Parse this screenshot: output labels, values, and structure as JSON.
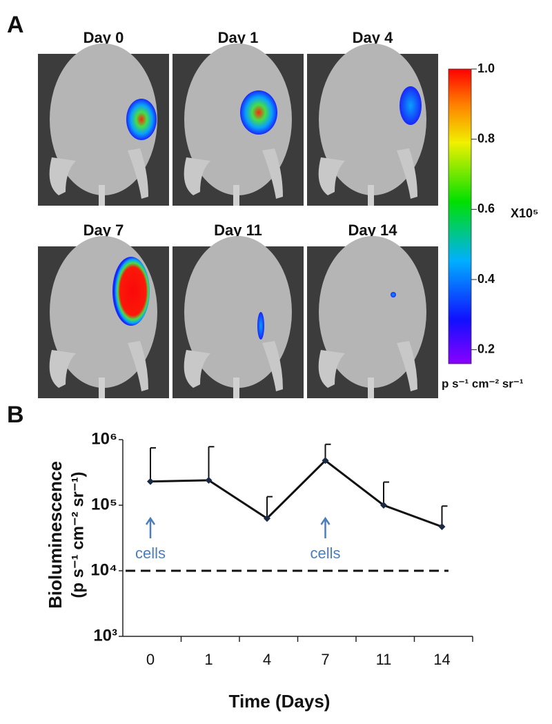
{
  "panel_a": {
    "label": "A",
    "images": [
      "Day 0",
      "Day 1",
      "Day  4",
      "Day 7",
      "Day 11",
      "Day 14"
    ],
    "colorbar": {
      "clim": [
        0.16,
        1.0
      ],
      "ticks": [
        0.2,
        0.4,
        0.6,
        0.8,
        {
          "value": 1,
          "label": "1.0"
        }
      ],
      "multiplier": "X10⁵",
      "unit": "p s⁻¹ cm⁻² sr⁻¹"
    }
  },
  "chart_data": {
    "type": "line",
    "panel_label": "B",
    "y_label": "Bioluminescence",
    "y_label_unit": "(p s⁻¹ cm⁻² sr⁻¹)",
    "x_label": "Time (Days)",
    "categories": [
      "0",
      "1",
      "4",
      "7",
      "11",
      "14"
    ],
    "series": [
      {
        "color": "#111111",
        "values": [
          230000,
          240000,
          63000,
          480000,
          100000,
          47000
        ],
        "errors": [
          520000,
          540000,
          72000,
          370000,
          125000,
          50000
        ]
      }
    ],
    "ylim": [
      1000,
      1000000
    ],
    "log_scale": true,
    "yticks": [
      {
        "value": 1000,
        "label": "10³"
      },
      {
        "value": 10000,
        "label": "10⁴"
      },
      {
        "value": 100000,
        "label": "10⁵"
      },
      {
        "value": 1000000,
        "label": "10⁶"
      }
    ],
    "reference_line": 10000,
    "annotations": [
      {
        "text": "cells",
        "category": "0"
      },
      {
        "text": "cells",
        "category": "7"
      }
    ]
  }
}
